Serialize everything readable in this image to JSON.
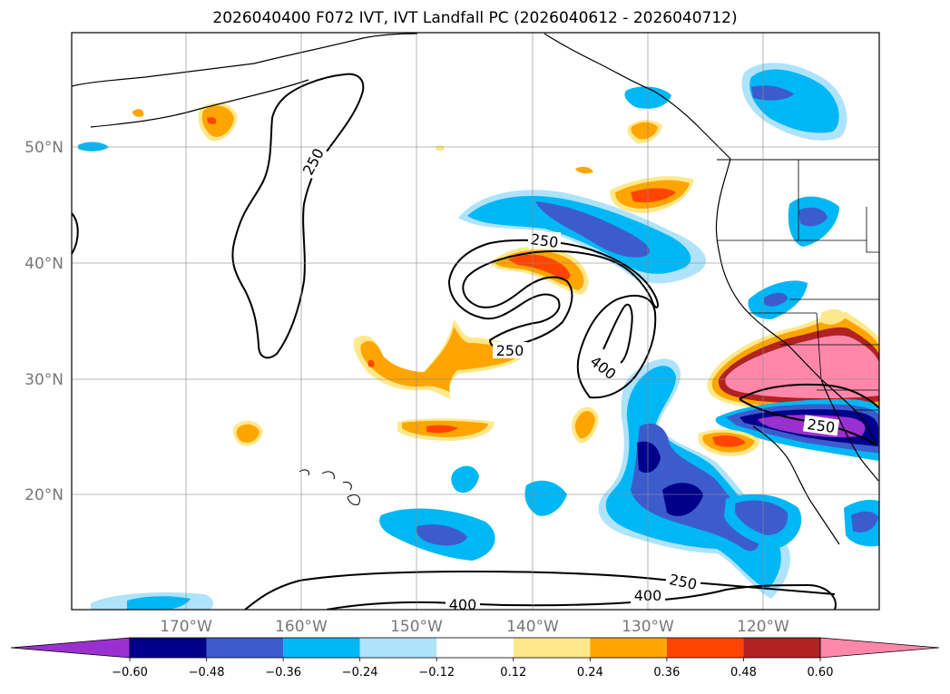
{
  "title": "2026040400 F072 IVT, IVT Landfall PC (2026040612 - 2026040712)",
  "lat_labels": [
    "50°N",
    "40°N",
    "30°N",
    "20°N"
  ],
  "lon_labels": [
    "170°W",
    "160°W",
    "150°W",
    "140°W",
    "130°W",
    "120°W"
  ],
  "contour_labels": [
    "250",
    "250",
    "250",
    "400",
    "250",
    "250",
    "400",
    "400"
  ],
  "colorbar": {
    "tick_labels": [
      "−0.60",
      "−0.48",
      "−0.36",
      "−0.24",
      "−0.12",
      "0.12",
      "0.24",
      "0.36",
      "0.48",
      "0.60"
    ],
    "colors": [
      "#9b30d0",
      "#00008b",
      "#3c5ccc",
      "#00b7f5",
      "#aee3fb",
      "#ffffff",
      "#ffe88a",
      "#ffa500",
      "#ff4500",
      "#b22222",
      "#ff88aa"
    ]
  }
}
